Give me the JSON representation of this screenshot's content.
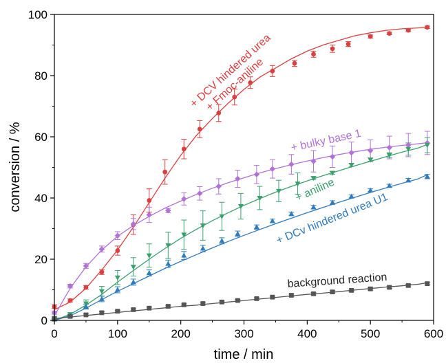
{
  "chart_data": {
    "type": "scatter",
    "xlabel": "time / min",
    "ylabel": "conversion / %",
    "xlim": [
      0,
      600
    ],
    "ylim": [
      0,
      100
    ],
    "xticks": [
      0,
      100,
      200,
      300,
      400,
      500,
      600
    ],
    "yticks": [
      0,
      20,
      40,
      60,
      80,
      100
    ],
    "grid": false,
    "legend": "none",
    "series": [
      {
        "color": "#d94040",
        "marker": "circle",
        "x": [
          0,
          25,
          50,
          75,
          100,
          125,
          150,
          175,
          205,
          230,
          260,
          285,
          310,
          345,
          380,
          410,
          440,
          465,
          500,
          530,
          560,
          590
        ],
        "y": [
          4.5,
          6.5,
          10.8,
          15.8,
          22.8,
          31.3,
          39.2,
          48.5,
          56,
          62.5,
          67.8,
          73,
          77.7,
          81.5,
          84,
          87,
          88.8,
          90.3,
          92.8,
          93.8,
          94.8,
          95.8
        ],
        "err": [
          0.6,
          0.5,
          0.6,
          0.8,
          1.5,
          3.2,
          3.8,
          4,
          3.2,
          2.8,
          2.8,
          2.6,
          1.9,
          1.8,
          1.0,
          1.0,
          1.2,
          0.8,
          0.5,
          0.4,
          0.4,
          0.4
        ],
        "fit_y": [
          3.5,
          6.0,
          10.5,
          16.5,
          23.0,
          30.5,
          38.5,
          46.5,
          54.0,
          60.5,
          66.0,
          71.0,
          75.5,
          79.5,
          82.5,
          85.5,
          88.0,
          90.0,
          91.5,
          93.0,
          94.0,
          94.8,
          95.3,
          95.6,
          95.8
        ]
      },
      {
        "color": "#b072d8",
        "marker": "diamond",
        "x": [
          0,
          25,
          50,
          75,
          100,
          125,
          150,
          180,
          205,
          230,
          260,
          290,
          320,
          345,
          375,
          410,
          440,
          470,
          500,
          530,
          560,
          590
        ],
        "y": [
          2.5,
          11.2,
          17.8,
          23.3,
          27.7,
          31.5,
          34.5,
          35.9,
          39.7,
          41.5,
          43.8,
          46.3,
          47.7,
          49.5,
          51,
          52,
          53.5,
          54.8,
          55.5,
          56.5,
          57.3,
          58
        ],
        "err": [
          0.5,
          0.6,
          0.8,
          1.0,
          1.3,
          1.8,
          2.5,
          0.7,
          2.0,
          2.2,
          2.5,
          2.8,
          3.0,
          3.0,
          3.2,
          3.5,
          3.5,
          3.5,
          3.5,
          3.7,
          3.8,
          3.8
        ],
        "fit_y": [
          1.5,
          10.5,
          17.5,
          23.0,
          27.5,
          31.0,
          34.0,
          36.7,
          39.0,
          41.2,
          43.2,
          45.0,
          46.6,
          48.2,
          49.6,
          50.9,
          52.1,
          53.2,
          54.2,
          55.1,
          55.9,
          56.6,
          57.2,
          57.7,
          58.1
        ]
      },
      {
        "color": "#3aa06c",
        "marker": "triangle-down",
        "x": [
          0,
          25,
          50,
          75,
          100,
          125,
          150,
          180,
          205,
          235,
          265,
          295,
          325,
          355,
          385,
          410,
          440,
          470,
          500,
          530,
          560,
          590
        ],
        "y": [
          0.8,
          2,
          5.5,
          9.5,
          14,
          17.5,
          21.2,
          24.5,
          28,
          31,
          34,
          37.3,
          40,
          42.3,
          44.7,
          46.5,
          48.2,
          50.8,
          52.5,
          54,
          56,
          57.3
        ],
        "err": [
          0.4,
          0.5,
          1.2,
          1.6,
          2.3,
          3.0,
          3.8,
          4.3,
          4.8,
          4.8,
          4.6,
          4.2,
          3.8,
          3.5,
          3.5,
          0.5,
          0.5,
          0.5,
          0.6,
          0.8,
          2.0,
          2.5
        ],
        "fit_y": [
          0.0,
          2.0,
          5.0,
          8.5,
          12.5,
          16.3,
          20.0,
          23.5,
          26.8,
          29.8,
          32.6,
          35.2,
          37.6,
          39.8,
          41.9,
          43.8,
          45.6,
          47.3,
          48.9,
          50.5,
          52.0,
          53.5,
          55.0,
          56.3,
          57.5
        ]
      },
      {
        "color": "#2e7bbd",
        "marker": "triangle-up",
        "x": [
          0,
          25,
          50,
          75,
          100,
          125,
          150,
          180,
          205,
          235,
          265,
          290,
          320,
          345,
          375,
          410,
          440,
          470,
          500,
          530,
          560,
          590
        ],
        "y": [
          0.3,
          1.5,
          4.5,
          7,
          10,
          12.5,
          15.5,
          18.5,
          21.2,
          23.5,
          26,
          28.3,
          30.5,
          32.5,
          34.8,
          37,
          38.5,
          40.5,
          42.5,
          44,
          45.8,
          47
        ],
        "err": [
          0.3,
          0.4,
          0.8,
          0.9,
          1.0,
          1.0,
          1.0,
          1.2,
          1.3,
          1.1,
          1.0,
          0.9,
          0.7,
          0.6,
          0.6,
          0.6,
          0.6,
          0.5,
          0.5,
          0.5,
          0.6,
          0.7
        ],
        "fit_y": [
          0.0,
          1.5,
          4.0,
          6.8,
          9.5,
          12.0,
          14.5,
          17.0,
          19.3,
          21.5,
          23.7,
          25.8,
          27.8,
          29.7,
          31.6,
          33.4,
          35.2,
          36.9,
          38.6,
          40.2,
          41.8,
          43.3,
          44.8,
          46.2,
          47.6
        ]
      },
      {
        "color": "#555555",
        "marker": "square",
        "x": [
          0,
          25,
          50,
          75,
          100,
          125,
          150,
          180,
          205,
          235,
          265,
          290,
          320,
          345,
          375,
          410,
          440,
          470,
          500,
          530,
          560,
          590
        ],
        "y": [
          0.5,
          1.3,
          1.8,
          2.5,
          3,
          3.5,
          4,
          4.6,
          5.1,
          5.5,
          6,
          6.5,
          7.1,
          7.6,
          8.2,
          8.7,
          9.3,
          9.8,
          10.3,
          10.8,
          11.4,
          12
        ],
        "err": [
          0.3,
          0.3,
          0.3,
          0.3,
          0.3,
          0.3,
          0.3,
          0.3,
          0.3,
          0.3,
          0.3,
          0.3,
          0.3,
          0.3,
          0.4,
          0.4,
          0.4,
          0.4,
          0.4,
          0.4,
          0.4,
          0.4
        ],
        "fit_y": [
          0.6,
          1.1,
          1.6,
          2.1,
          2.6,
          3.1,
          3.6,
          4.1,
          4.6,
          5.0,
          5.5,
          6.0,
          6.5,
          7.0,
          7.5,
          8.0,
          8.5,
          8.9,
          9.4,
          9.9,
          10.4,
          10.9,
          11.3,
          11.8,
          12.3
        ]
      }
    ],
    "fit_x": [
      0,
      25,
      50,
      75,
      100,
      125,
      150,
      175,
      200,
      225,
      250,
      275,
      300,
      325,
      350,
      375,
      400,
      425,
      450,
      475,
      500,
      525,
      550,
      575,
      590
    ],
    "annotations": [
      {
        "lines": [
          "+ DCV hindered urea",
          "+ Fmoc-aniline"
        ],
        "color": "#d94040"
      },
      {
        "lines": [
          "+ bulky base 1"
        ],
        "color": "#b072d8"
      },
      {
        "lines": [
          "+ aniline"
        ],
        "color": "#3aa06c"
      },
      {
        "lines": [
          "+ DCv hindered urea U1"
        ],
        "color": "#2e7bbd"
      },
      {
        "lines": [
          "background reaction"
        ],
        "color": "#222222"
      }
    ]
  }
}
